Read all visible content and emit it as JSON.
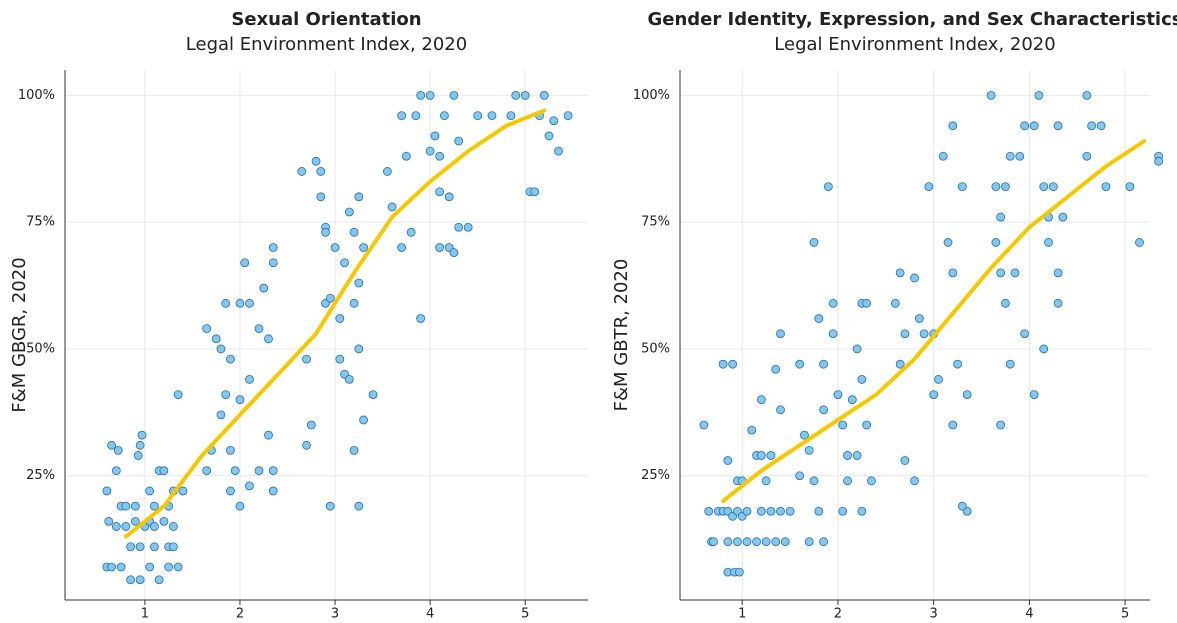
{
  "chart_data": [
    {
      "type": "scatter",
      "title": "Sexual Orientation",
      "subtitle": "Legal Environment Index, 2020",
      "y_label": "F&M GBGR, 2020",
      "xlim": [
        0.16,
        5.66
      ],
      "ylim": [
        0.5,
        105
      ],
      "xticks": [
        1,
        2,
        3,
        4,
        5
      ],
      "yticks": [
        {
          "value": 25,
          "label": "25%"
        },
        {
          "value": 50,
          "label": "50%"
        },
        {
          "value": 75,
          "label": "75%"
        },
        {
          "value": 100,
          "label": "100%"
        }
      ],
      "grid": true,
      "color": "#85c6ec",
      "edge_color": "#1f6fb0",
      "x": [
        0.65,
        0.7,
        0.72,
        0.6,
        0.75,
        0.8,
        0.9,
        0.95,
        0.97,
        0.93,
        1.05,
        1.1,
        1.15,
        1.2,
        1.25,
        1.3,
        1.35,
        1.4,
        0.62,
        0.7,
        0.8,
        0.9,
        1.0,
        1.05,
        1.1,
        1.2,
        1.3,
        0.6,
        0.65,
        0.75,
        0.85,
        0.95,
        1.05,
        1.15,
        1.25,
        1.35,
        0.85,
        0.95,
        1.1,
        1.25,
        1.3,
        1.65,
        1.75,
        1.8,
        1.85,
        1.9,
        2.0,
        2.05,
        2.1,
        2.2,
        2.25,
        2.3,
        2.35,
        2.35,
        1.85,
        1.8,
        1.9,
        2.0,
        2.1,
        1.7,
        1.9,
        1.95,
        2.0,
        2.1,
        2.2,
        2.3,
        2.35,
        2.35,
        1.65,
        2.65,
        2.8,
        2.85,
        2.85,
        2.9,
        2.9,
        3.0,
        3.05,
        3.1,
        3.15,
        3.2,
        3.25,
        3.3,
        3.25,
        3.2,
        2.9,
        2.95,
        3.05,
        3.1,
        3.15,
        3.25,
        3.3,
        3.4,
        3.2,
        2.7,
        2.75,
        2.95,
        3.25,
        2.7,
        3.55,
        3.7,
        3.75,
        3.85,
        3.9,
        4.0,
        4.0,
        4.05,
        4.1,
        4.15,
        4.2,
        4.25,
        4.3,
        4.1,
        4.2,
        4.3,
        4.4,
        4.25,
        3.6,
        3.7,
        3.8,
        3.9,
        4.1,
        4.5,
        4.65,
        4.85,
        4.9,
        5.0,
        5.05,
        5.1,
        5.15,
        5.2,
        5.25,
        5.3,
        5.35,
        5.45
      ],
      "values": [
        31,
        26,
        30,
        22,
        19,
        19,
        19,
        31,
        33,
        29,
        22,
        19,
        26,
        26,
        19,
        22,
        41,
        22,
        16,
        15,
        15,
        16,
        15,
        16,
        15,
        16,
        15,
        7,
        7,
        7,
        4.5,
        4.5,
        7,
        4.5,
        7,
        7,
        11,
        11,
        11,
        11,
        11,
        54,
        52,
        50,
        59,
        48,
        59,
        67,
        59,
        54,
        62,
        52,
        70,
        67,
        41,
        37,
        30,
        40,
        44,
        30,
        22,
        26,
        19,
        23,
        26,
        33,
        26,
        22,
        26,
        85,
        87,
        85,
        80,
        74,
        73,
        70,
        56,
        67,
        77,
        73,
        80,
        70,
        63,
        59,
        59,
        60,
        48,
        45,
        44,
        50,
        36,
        41,
        30,
        31,
        35,
        19,
        19,
        48,
        85,
        96,
        88,
        96,
        100,
        100,
        89,
        92,
        88,
        96,
        80,
        100,
        91,
        81,
        70,
        74,
        74,
        69,
        78,
        70,
        73,
        56,
        70,
        96,
        96,
        96,
        100,
        100,
        81,
        81,
        96,
        100,
        92,
        95,
        89,
        96
      ],
      "trend": {
        "color": "#f5c800",
        "x": [
          0.8,
          1.2,
          1.6,
          2.0,
          2.4,
          2.8,
          3.2,
          3.6,
          4.0,
          4.4,
          4.8,
          5.2
        ],
        "values": [
          13,
          19,
          29,
          37,
          45,
          53,
          65,
          76,
          83,
          89,
          94,
          97
        ]
      }
    },
    {
      "type": "scatter",
      "title": "Gender Identity, Expression, and Sex Characteristics",
      "subtitle": "Legal Environment Index, 2020",
      "y_label": "F&M GBTR, 2020",
      "xlim": [
        0.35,
        5.26
      ],
      "ylim": [
        0.5,
        105
      ],
      "xticks": [
        1,
        2,
        3,
        4,
        5
      ],
      "yticks": [
        {
          "value": 25,
          "label": "25%"
        },
        {
          "value": 50,
          "label": "50%"
        },
        {
          "value": 75,
          "label": "75%"
        },
        {
          "value": 100,
          "label": "100%"
        }
      ],
      "grid": true,
      "color": "#85c6ec",
      "edge_color": "#1f6fb0",
      "x": [
        0.6,
        0.65,
        0.68,
        0.7,
        0.8,
        0.85,
        0.9,
        0.95,
        1.0,
        0.75,
        0.8,
        0.85,
        0.9,
        0.95,
        1.0,
        1.05,
        0.85,
        0.92,
        0.97,
        0.85,
        0.95,
        1.05,
        1.1,
        1.15,
        1.2,
        1.25,
        1.3,
        1.35,
        1.4,
        1.4,
        1.2,
        1.15,
        1.25,
        1.35,
        1.45,
        1.2,
        1.3,
        1.4,
        1.5,
        1.6,
        1.65,
        1.7,
        1.75,
        1.8,
        1.85,
        1.9,
        1.95,
        1.95,
        1.85,
        1.75,
        1.8,
        1.85,
        1.7,
        1.6,
        2.0,
        2.05,
        2.1,
        2.15,
        2.25,
        2.3,
        2.2,
        2.25,
        2.1,
        2.2,
        2.3,
        2.05,
        2.25,
        2.35,
        2.6,
        2.65,
        2.7,
        2.8,
        2.85,
        2.9,
        2.95,
        3.0,
        3.05,
        3.1,
        3.2,
        3.15,
        3.25,
        3.3,
        3.35,
        3.2,
        3.35,
        3.3,
        2.8,
        2.7,
        2.65,
        3.0,
        3.2,
        3.6,
        3.65,
        3.7,
        3.75,
        3.8,
        3.9,
        3.95,
        4.05,
        4.1,
        4.15,
        4.2,
        4.25,
        4.3,
        4.35,
        4.6,
        4.65,
        4.75,
        4.8,
        4.6,
        3.65,
        3.7,
        3.75,
        3.8,
        3.85,
        3.95,
        4.05,
        4.15,
        4.2,
        4.3,
        4.3,
        3.7,
        5.05,
        5.15,
        5.35,
        5.35
      ],
      "values": [
        35,
        18,
        12,
        12,
        47,
        28,
        47,
        24,
        24,
        18,
        18,
        18,
        17,
        18,
        17,
        18,
        6,
        6,
        6,
        12,
        12,
        12,
        34,
        29,
        29,
        24,
        29,
        46,
        53,
        38,
        40,
        12,
        12,
        12,
        12,
        18,
        18,
        18,
        18,
        47,
        33,
        30,
        71,
        56,
        47,
        82,
        59,
        53,
        38,
        24,
        18,
        12,
        12,
        25,
        41,
        35,
        29,
        40,
        59,
        59,
        50,
        44,
        24,
        29,
        35,
        18,
        18,
        24,
        59,
        65,
        53,
        64,
        56,
        53,
        82,
        41,
        44,
        88,
        94,
        71,
        47,
        82,
        41,
        35,
        18,
        19,
        24,
        28,
        47,
        53,
        65,
        100,
        82,
        76,
        82,
        88,
        88,
        94,
        94,
        100,
        82,
        76,
        82,
        94,
        76,
        100,
        94,
        94,
        82,
        88,
        71,
        65,
        59,
        47,
        65,
        53,
        41,
        50,
        71,
        65,
        59,
        35,
        82,
        71,
        88,
        87
      ],
      "trend": {
        "color": "#f5c800",
        "x": [
          0.8,
          1.2,
          1.6,
          2.0,
          2.4,
          2.8,
          3.2,
          3.6,
          4.0,
          4.4,
          4.8,
          5.2
        ],
        "values": [
          20,
          26,
          31,
          36,
          41,
          48,
          57,
          66,
          74,
          80,
          86,
          91
        ]
      }
    }
  ]
}
